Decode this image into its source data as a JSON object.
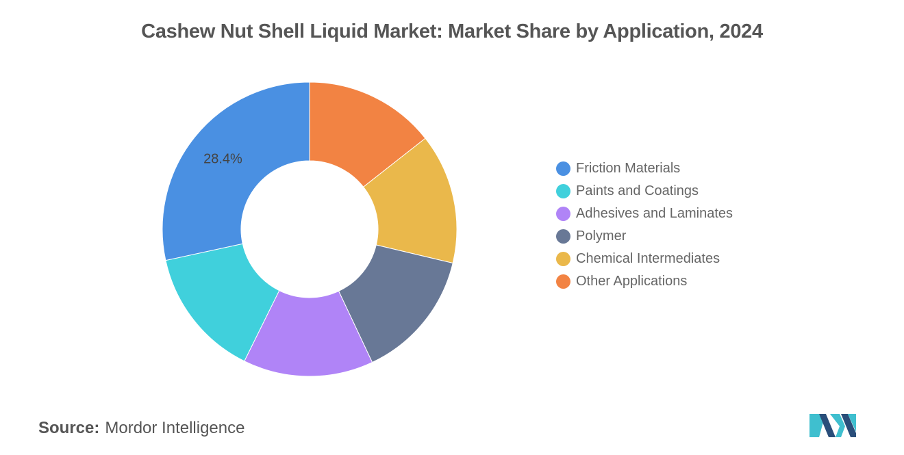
{
  "title": "Cashew Nut Shell Liquid Market: Market Share by Application, 2024",
  "source": {
    "label": "Source:",
    "value": "Mordor Intelligence"
  },
  "colors": {
    "friction": "#4A90E2",
    "paints": "#40D0DC",
    "adhesives": "#B084F7",
    "polymer": "#687896",
    "chemical": "#EAB84B",
    "other": "#F28343",
    "logo_teal": "#3FBFCF",
    "logo_navy": "#2A4E7A"
  },
  "chart_data": {
    "type": "pie",
    "donut": true,
    "title": "Cashew Nut Shell Liquid Market: Market Share by Application, 2024",
    "legend_position": "right",
    "slices": [
      {
        "label": "Friction Materials",
        "value": 28.4,
        "color": "#4A90E2",
        "data_label": "28.4%"
      },
      {
        "label": "Paints and Coatings",
        "value": 14.3,
        "color": "#40D0DC",
        "data_label": ""
      },
      {
        "label": "Adhesives and Laminates",
        "value": 14.3,
        "color": "#B084F7",
        "data_label": ""
      },
      {
        "label": "Polymer",
        "value": 14.3,
        "color": "#687896",
        "data_label": ""
      },
      {
        "label": "Chemical Intermediates",
        "value": 14.3,
        "color": "#EAB84B",
        "data_label": ""
      },
      {
        "label": "Other Applications",
        "value": 14.4,
        "color": "#F28343",
        "data_label": ""
      }
    ],
    "plot_order": [
      5,
      4,
      3,
      2,
      1,
      0
    ]
  }
}
